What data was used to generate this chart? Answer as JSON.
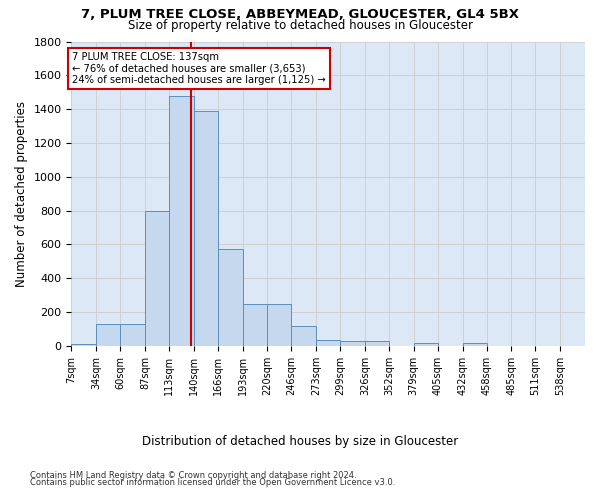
{
  "title1": "7, PLUM TREE CLOSE, ABBEYMEAD, GLOUCESTER, GL4 5BX",
  "title2": "Size of property relative to detached houses in Gloucester",
  "xlabel": "Distribution of detached houses by size in Gloucester",
  "ylabel": "Number of detached properties",
  "bin_edges": [
    7,
    34,
    60,
    87,
    113,
    140,
    166,
    193,
    220,
    246,
    273,
    299,
    326,
    352,
    379,
    405,
    432,
    458,
    485,
    511,
    538
  ],
  "bar_heights": [
    10,
    130,
    130,
    800,
    1480,
    1390,
    575,
    250,
    250,
    115,
    35,
    30,
    30,
    0,
    20,
    0,
    20,
    0,
    0,
    0
  ],
  "bar_color": "#c5d8ee",
  "bar_edge_color": "#5a8fc0",
  "property_size": 137,
  "annotation_title": "7 PLUM TREE CLOSE: 137sqm",
  "annotation_line1": "← 76% of detached houses are smaller (3,653)",
  "annotation_line2": "24% of semi-detached houses are larger (1,125) →",
  "annotation_box_color": "#ffffff",
  "annotation_box_edge_color": "#cc0000",
  "vline_color": "#cc0000",
  "ylim": [
    0,
    1800
  ],
  "yticks": [
    0,
    200,
    400,
    600,
    800,
    1000,
    1200,
    1400,
    1600,
    1800
  ],
  "grid_color": "#cccccc",
  "bg_color": "#dce8f5",
  "footnote1": "Contains HM Land Registry data © Crown copyright and database right 2024.",
  "footnote2": "Contains public sector information licensed under the Open Government Licence v3.0."
}
